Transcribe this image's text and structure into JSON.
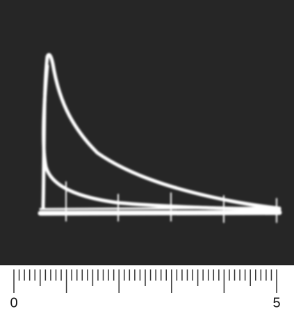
{
  "scale": {
    "labels": [
      "0",
      "5"
    ]
  }
}
